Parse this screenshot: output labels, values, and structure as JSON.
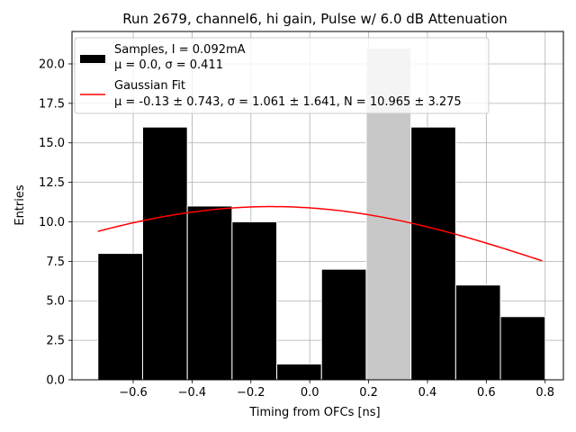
{
  "chart_data": {
    "type": "bar",
    "title": "Run 2679, channel6, hi gain, Pulse w/ 6.0 dB Attenuation",
    "xlabel": "Timing from OFCs [ns]",
    "ylabel": "Entries",
    "xlim": [
      -0.808,
      0.862
    ],
    "ylim": [
      0.0,
      22.05
    ],
    "xticks": [
      -0.6,
      -0.4,
      -0.2,
      0.0,
      0.2,
      0.4,
      0.6,
      0.8
    ],
    "xtick_labels": [
      "−0.6",
      "−0.4",
      "−0.2",
      "0.0",
      "0.2",
      "0.4",
      "0.6",
      "0.8"
    ],
    "yticks": [
      0.0,
      2.5,
      5.0,
      7.5,
      10.0,
      12.5,
      15.0,
      17.5,
      20.0
    ],
    "ytick_labels": [
      "0.0",
      "2.5",
      "5.0",
      "7.5",
      "10.0",
      "12.5",
      "15.0",
      "17.5",
      "20.0"
    ],
    "grid": true,
    "legend_position": "top-left",
    "histogram": {
      "name": "Samples, I = 0.092mA",
      "label_line1": "Samples, I = 0.092mA",
      "label_line2": "μ = 0.0, σ = 0.411",
      "color": "#000000",
      "bin_edges": [
        -0.72,
        -0.568,
        -0.416,
        -0.264,
        -0.112,
        0.04,
        0.192,
        0.344,
        0.496,
        0.648,
        0.8
      ],
      "values": [
        8,
        16,
        11,
        10,
        1,
        7,
        21,
        16,
        6,
        4
      ],
      "highlight_color": "#c8c8c8",
      "highlight_index": 6
    },
    "fit": {
      "name": "Gaussian Fit",
      "label_line1": "Gaussian Fit",
      "label_line2": "μ = -0.13 ± 0.743, σ = 1.061 ± 1.641, N = 10.965 ± 3.275",
      "color": "#ff0000",
      "mu": -0.13,
      "sigma": 1.061,
      "N": 10.965,
      "x_range": [
        -0.72,
        0.79
      ]
    }
  }
}
